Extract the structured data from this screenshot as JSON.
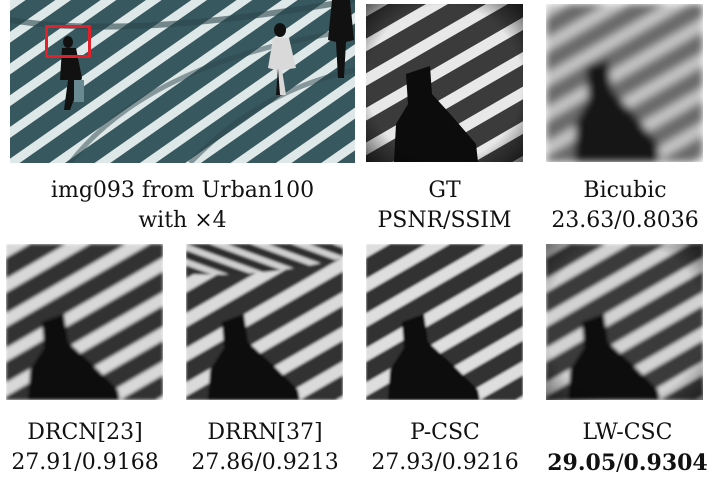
{
  "figure": {
    "source_caption": {
      "line1": "img093 from Urban100",
      "line2": "with ×4"
    },
    "panels": [
      {
        "id": "gt",
        "label": "GT",
        "metric": "PSNR/SSIM",
        "bold": false
      },
      {
        "id": "bicubic",
        "label": "Bicubic",
        "metric": "23.63/0.8036",
        "bold": false
      },
      {
        "id": "drcn",
        "label": "DRCN[23]",
        "metric": "27.91/0.9168",
        "bold": false
      },
      {
        "id": "drrn",
        "label": "DRRN[37]",
        "metric": "27.86/0.9213",
        "bold": false
      },
      {
        "id": "pcsc",
        "label": "P-CSC",
        "metric": "27.93/0.9216",
        "bold": false
      },
      {
        "id": "lwcsc",
        "label": "LW-CSC",
        "metric": "29.05/0.9304",
        "bold": true,
        "metric_parts": [
          "29.05",
          "/",
          "0.9304"
        ]
      }
    ],
    "colors": {
      "highlight_box": "#e0202a",
      "scene_sky": "#3f6d78",
      "stripe_light": "#e6ecec"
    }
  }
}
